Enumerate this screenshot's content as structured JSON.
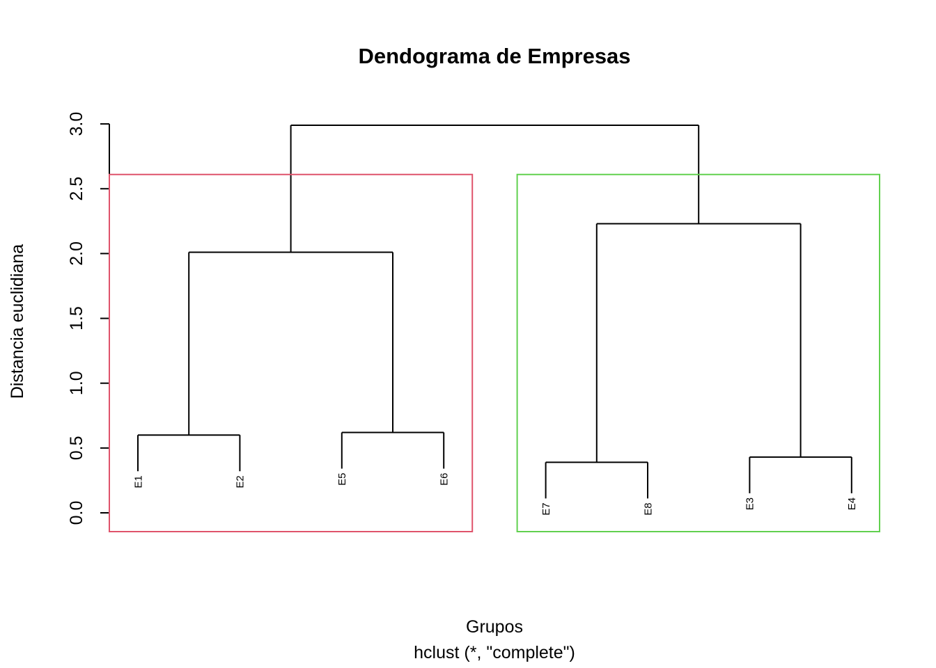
{
  "chart_data": {
    "type": "dendrogram",
    "title": "Dendograma de Empresas",
    "xlabel": "Grupos",
    "sublabel": "hclust (*, \"complete\")",
    "ylabel": "Distancia euclidiana",
    "ylim": [
      0,
      3.0
    ],
    "yticks": [
      {
        "value": 0.0,
        "label": "0.0"
      },
      {
        "value": 0.5,
        "label": "0.5"
      },
      {
        "value": 1.0,
        "label": "1.0"
      },
      {
        "value": 1.5,
        "label": "1.5"
      },
      {
        "value": 2.0,
        "label": "2.0"
      },
      {
        "value": 2.5,
        "label": "2.5"
      },
      {
        "value": 3.0,
        "label": "3.0"
      }
    ],
    "leaves": [
      "E1",
      "E2",
      "E5",
      "E6",
      "E7",
      "E8",
      "E3",
      "E4"
    ],
    "merges": [
      {
        "left": "E1",
        "right": "E2",
        "height": 0.6
      },
      {
        "left": "E5",
        "right": "E6",
        "height": 0.62
      },
      {
        "left": "E7",
        "right": "E8",
        "height": 0.39
      },
      {
        "left": "E3",
        "right": "E4",
        "height": 0.43
      },
      {
        "left": "E1-E2",
        "right": "E5-E6",
        "height": 2.01
      },
      {
        "left": "E7-E8",
        "right": "E3-E4",
        "height": 2.23
      },
      {
        "left": "E1-E2-E5-E6",
        "right": "E7-E8-E3-E4",
        "height": 2.99
      }
    ],
    "cluster_boxes": [
      {
        "leaves": [
          "E1",
          "E2",
          "E5",
          "E6"
        ],
        "color": "#DF536B"
      },
      {
        "leaves": [
          "E7",
          "E8",
          "E3",
          "E4"
        ],
        "color": "#61D04F"
      }
    ]
  }
}
